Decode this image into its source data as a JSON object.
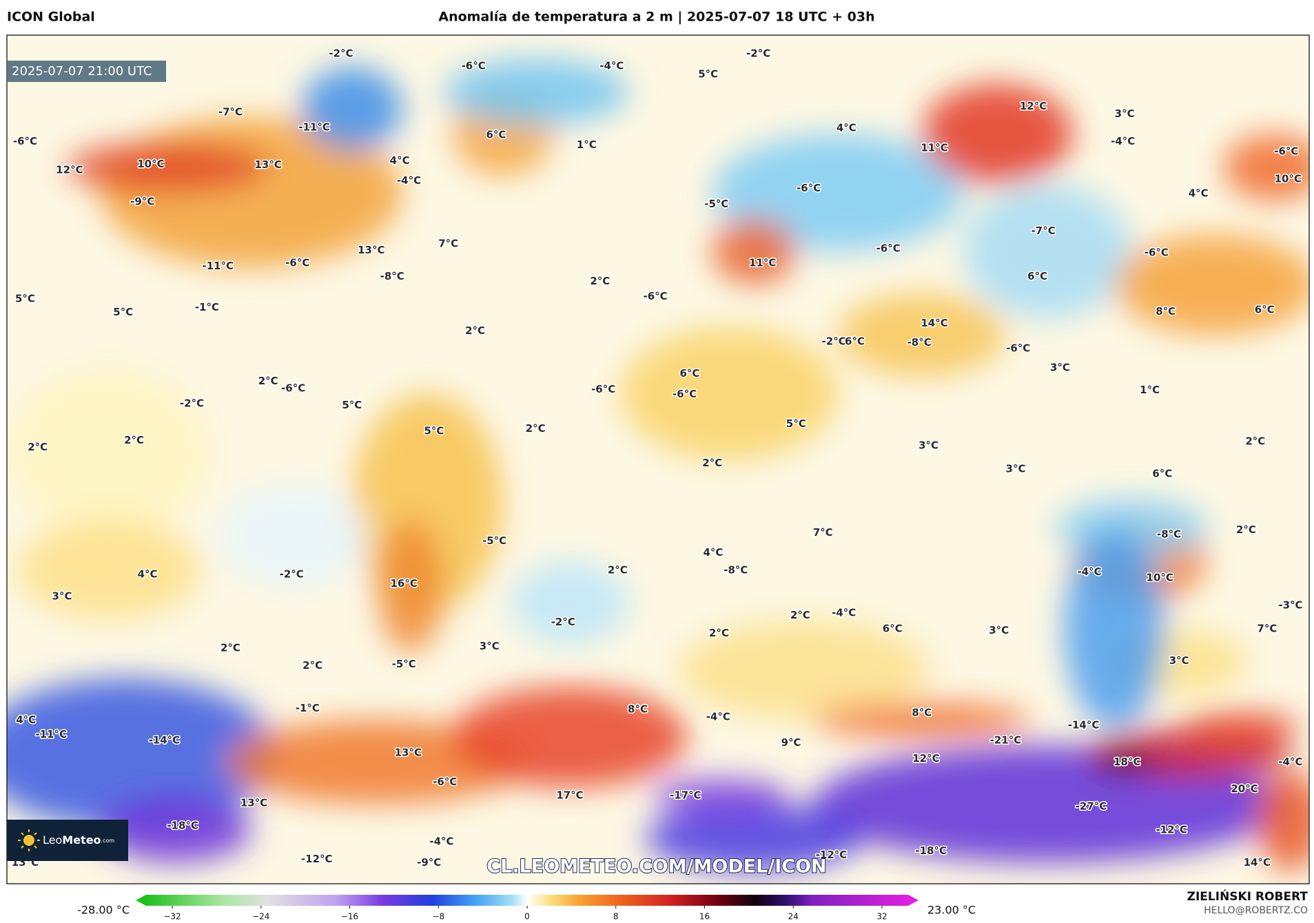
{
  "header": {
    "left": "ICON Global",
    "title": "Anomalía de temperatura a 2 m | 2025-07-07 18 UTC + 03h"
  },
  "map": {
    "timestamp": "2025-07-07 21:00 UTC",
    "watermark": "CL.LEOMETEO.COM/MODEL/ICON",
    "labels": [
      "-2°C",
      "-6°C",
      "-4°C",
      "-2°C",
      "5°C",
      "-7°C",
      "-11°C",
      "6°C",
      "1°C",
      "12°C",
      "3°C",
      "-6°C",
      "12°C",
      "10°C",
      "13°C",
      "-4°C",
      "-6°C",
      "10°C",
      "4°C",
      "11°C",
      "4°C",
      "-4°C",
      "-9°C",
      "-6°C",
      "-5°C",
      "4°C",
      "-7°C",
      "13°C",
      "7°C",
      "-6°C",
      "-6°C",
      "-11°C",
      "-6°C",
      "-8°C",
      "11°C",
      "6°C",
      "2°C",
      "5°C",
      "5°C",
      "-1°C",
      "-6°C",
      "8°C",
      "6°C",
      "2°C",
      "14°C",
      "-8°C",
      "-6°C",
      "-2°C",
      "6°C",
      "3°C",
      "1°C",
      "6°C",
      "-6°C",
      "2°C",
      "-6°C",
      "-6°C",
      "-2°C",
      "5°C",
      "2°C",
      "2°C",
      "5°C",
      "2°C",
      "5°C",
      "3°C",
      "2°C",
      "3°C",
      "2°C",
      "6°C",
      "-5°C",
      "7°C",
      "-8°C",
      "2°C",
      "4°C",
      "-8°C",
      "4°C",
      "-2°C",
      "3°C",
      "2°C",
      "16°C",
      "-4°C",
      "10°C",
      "-2°C",
      "2°C",
      "-4°C",
      "6°C",
      "3°C",
      "2°C",
      "-3°C",
      "7°C",
      "2°C",
      "3°C",
      "2°C",
      "-5°C",
      "3°C",
      "-1°C",
      "8°C",
      "-4°C",
      "8°C",
      "4°C",
      "-11°C",
      "-14°C",
      "-14°C",
      "-21°C",
      "9°C",
      "13°C",
      "12°C",
      "18°C",
      "-4°C",
      "-6°C",
      "20°C",
      "17°C",
      "-17°C",
      "13°C",
      "-27°C",
      "-18°C",
      "-12°C",
      "-4°C",
      "-12°C",
      "-9°C",
      "-12°C",
      "-18°C",
      "14°C",
      "13°C"
    ]
  },
  "logo": {
    "part1": "Leo",
    "part2": "Meteo",
    "part3": ".com"
  },
  "colorbar": {
    "min_label": "-28.00 °C",
    "max_label": "23.00 °C",
    "ticks": [
      "−32",
      "−24",
      "−16",
      "−8",
      "0",
      "8",
      "16",
      "24",
      "32"
    ]
  },
  "credits": {
    "author": "ZIELIŃSKI ROBERT",
    "email": "HELLO@ROBERTZ.CO"
  }
}
